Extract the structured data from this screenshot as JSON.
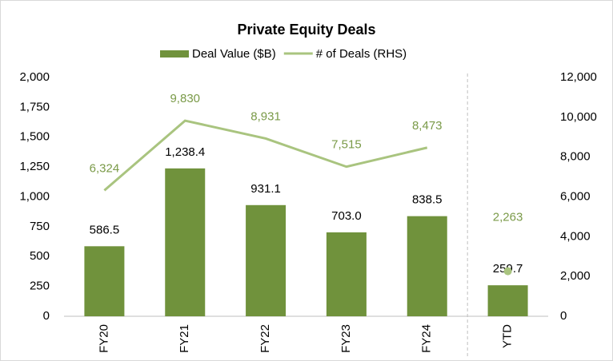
{
  "chart_data": {
    "type": "bar",
    "title": "Private Equity Deals",
    "categories": [
      "FY20",
      "FY21",
      "FY22",
      "FY23",
      "FY24",
      "YTD"
    ],
    "series": [
      {
        "name": "Deal Value ($B)",
        "type": "bar",
        "color": "#70923c",
        "values": [
          586.5,
          1238.4,
          931.1,
          703.0,
          838.5,
          259.7
        ],
        "value_labels": [
          "586.5",
          "1,238.4",
          "931.1",
          "703.0",
          "838.5",
          "259.7"
        ]
      },
      {
        "name": "# of Deals (RHS)",
        "type": "line",
        "axis": "y2",
        "color": "#a9c47f",
        "values": [
          6324,
          9830,
          8931,
          7515,
          8473,
          2263
        ],
        "value_labels": [
          "6,324",
          "9,830",
          "8,931",
          "7,515",
          "8,473",
          "2,263"
        ]
      }
    ],
    "divider_after": "FY24",
    "ylim": [
      0,
      2000
    ],
    "yticks": [
      0,
      250,
      500,
      750,
      {
        "value": 1000,
        "label": "1,000"
      },
      {
        "value": 1250,
        "label": "1,250"
      },
      {
        "value": 1500,
        "label": "1,500"
      },
      {
        "value": 1750,
        "label": "1,750"
      },
      {
        "value": 2000,
        "label": "2,000"
      }
    ],
    "y2lim": [
      0,
      12000
    ],
    "y2ticks": [
      0,
      {
        "value": 2000,
        "label": "2,000"
      },
      {
        "value": 4000,
        "label": "4,000"
      },
      {
        "value": 6000,
        "label": "6,000"
      },
      {
        "value": 8000,
        "label": "8,000"
      },
      {
        "value": 10000,
        "label": "10,000"
      },
      {
        "value": 12000,
        "label": "12,000"
      }
    ],
    "legend": "top"
  }
}
